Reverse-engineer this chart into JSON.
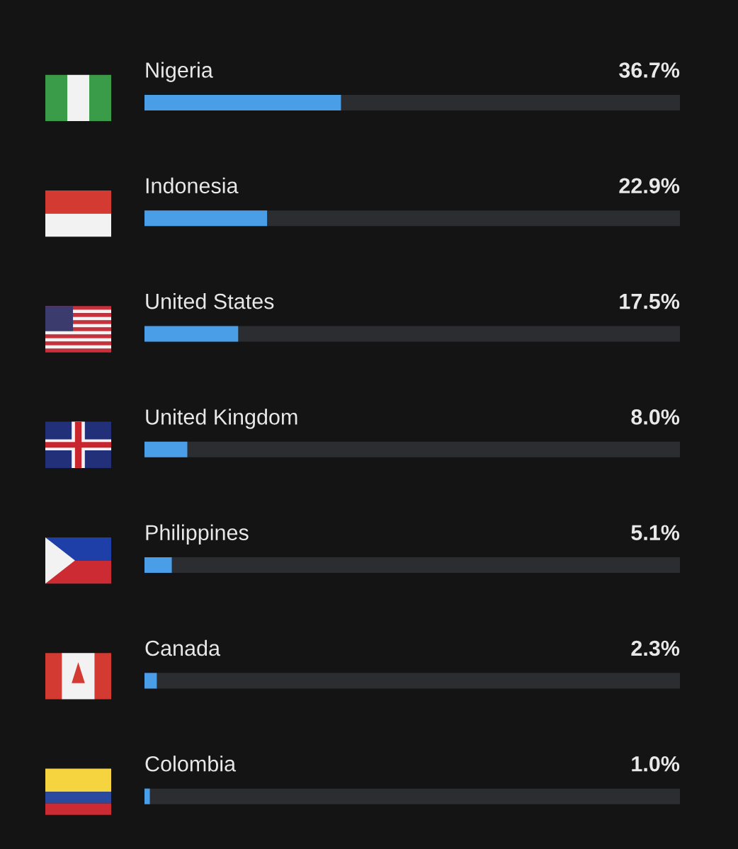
{
  "chart_data": {
    "type": "bar",
    "orientation": "horizontal",
    "categories": [
      "Nigeria",
      "Indonesia",
      "United States",
      "United Kingdom",
      "Philippines",
      "Canada",
      "Colombia"
    ],
    "values": [
      36.7,
      22.9,
      17.5,
      8.0,
      5.1,
      2.3,
      1.0
    ],
    "value_labels": [
      "36.7%",
      "22.9%",
      "17.5%",
      "8.0%",
      "5.1%",
      "2.3%",
      "1.0%"
    ],
    "color": "#4a9ee8",
    "xlim": [
      0,
      100
    ],
    "tick_labels": false
  }
}
